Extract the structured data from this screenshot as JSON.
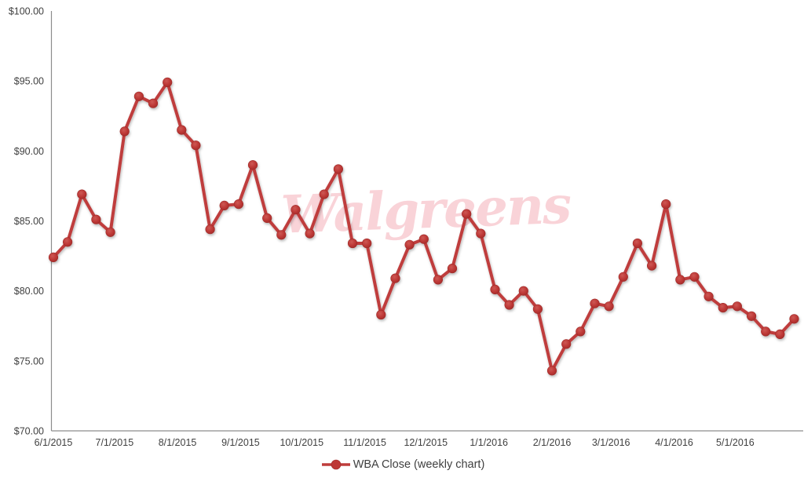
{
  "watermark": {
    "text": "Walgreens",
    "color": "#f9d3d8"
  },
  "legend": {
    "label": "WBA Close (weekly chart)"
  },
  "colors": {
    "line": "#bf3d3c",
    "marker_fill": "#bd3836",
    "marker_edge": "#9e2a28",
    "axis_line": "#8c8c8c",
    "tick_text": "#404040"
  },
  "chart_data": {
    "type": "line",
    "title": "",
    "xlabel": "",
    "ylabel": "",
    "ylim": [
      70,
      100
    ],
    "grid": false,
    "legend_position": "bottom",
    "x_tick_labels": [
      "6/1/2015",
      "7/1/2015",
      "8/1/2015",
      "9/1/2015",
      "10/1/2015",
      "11/1/2015",
      "12/1/2015",
      "1/1/2016",
      "2/1/2016",
      "3/1/2016",
      "4/1/2016",
      "5/1/2016"
    ],
    "x_tick_week_positions": [
      0,
      4.29,
      8.71,
      13.14,
      17.43,
      21.86,
      26.14,
      30.57,
      35.0,
      39.14,
      43.57,
      47.86
    ],
    "y_ticks": [
      {
        "value": 100,
        "label": "$100.00"
      },
      {
        "value": 95,
        "label": "$95.00"
      },
      {
        "value": 90,
        "label": "$90.00"
      },
      {
        "value": 85,
        "label": "$85.00"
      },
      {
        "value": 80,
        "label": "$80.00"
      },
      {
        "value": 75,
        "label": "$75.00"
      },
      {
        "value": 70,
        "label": "$70.00"
      }
    ],
    "series": [
      {
        "name": "WBA Close (weekly chart)",
        "color": "#bf3d3c",
        "x": [
          "6/1/2015",
          "6/8/2015",
          "6/15/2015",
          "6/22/2015",
          "6/29/2015",
          "7/6/2015",
          "7/13/2015",
          "7/20/2015",
          "7/27/2015",
          "8/3/2015",
          "8/10/2015",
          "8/17/2015",
          "8/24/2015",
          "8/31/2015",
          "9/7/2015",
          "9/14/2015",
          "9/21/2015",
          "9/28/2015",
          "10/5/2015",
          "10/12/2015",
          "10/19/2015",
          "10/26/2015",
          "11/2/2015",
          "11/9/2015",
          "11/16/2015",
          "11/23/2015",
          "11/30/2015",
          "12/7/2015",
          "12/14/2015",
          "12/21/2015",
          "12/28/2015",
          "1/4/2016",
          "1/11/2016",
          "1/18/2016",
          "1/25/2016",
          "2/1/2016",
          "2/8/2016",
          "2/15/2016",
          "2/22/2016",
          "2/29/2016",
          "3/7/2016",
          "3/14/2016",
          "3/21/2016",
          "3/28/2016",
          "4/4/2016",
          "4/11/2016",
          "4/18/2016",
          "4/25/2016",
          "5/2/2016",
          "5/9/2016",
          "5/16/2016",
          "5/23/2016",
          "5/30/2016"
        ],
        "values": [
          82.4,
          83.5,
          86.9,
          85.1,
          84.2,
          91.4,
          93.9,
          93.4,
          94.9,
          91.5,
          90.4,
          84.4,
          86.1,
          86.2,
          89.0,
          85.2,
          84.0,
          85.8,
          84.1,
          86.9,
          88.7,
          83.4,
          83.4,
          78.3,
          80.9,
          83.3,
          83.7,
          80.8,
          81.6,
          85.5,
          84.1,
          80.1,
          79.0,
          80.0,
          78.7,
          74.3,
          76.2,
          77.1,
          79.1,
          78.9,
          81.0,
          83.4,
          81.8,
          86.2,
          80.8,
          81.0,
          79.6,
          78.8,
          78.9,
          78.2,
          77.1,
          76.9,
          78.0
        ]
      }
    ]
  }
}
